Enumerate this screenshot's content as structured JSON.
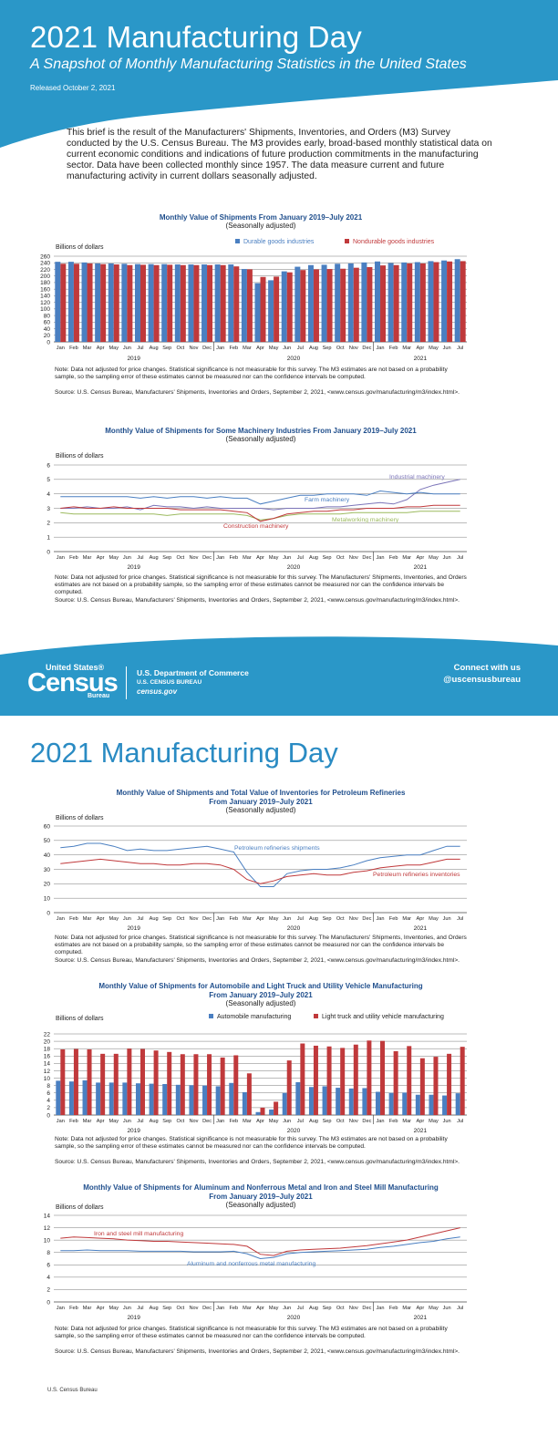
{
  "header": {
    "title": "2021 Manufacturing Day",
    "subtitle": "A Snapshot of Monthly Manufacturing Statistics in the United States",
    "released": "Released October 2, 2021",
    "bg_color": "#2a97c8"
  },
  "intro": "This brief is the result of the Manufacturers' Shipments, Inventories, and Orders (M3) Survey conducted by the U.S. Census Bureau. The M3 provides early, broad-based monthly statistical data on current economic conditions and indications of future production commitments in the manufacturing sector. Data have been collected monthly since 1957. The data measure current and future manufacturing activity in current dollars seasonally adjusted.",
  "month_labels": [
    "Jan",
    "Feb",
    "Mar",
    "Apr",
    "May",
    "Jun",
    "Jul",
    "Aug",
    "Sep",
    "Oct",
    "Nov",
    "Dec",
    "Jan",
    "Feb",
    "Mar",
    "Apr",
    "May",
    "Jun",
    "Jul",
    "Aug",
    "Sep",
    "Oct",
    "Nov",
    "Dec",
    "Jan",
    "Feb",
    "Mar",
    "Apr",
    "May",
    "Jun",
    "Jul"
  ],
  "years": [
    "2019",
    "2020",
    "2021"
  ],
  "banner": {
    "logo_top": "United States®",
    "logo_main": "Census",
    "logo_bottom": "Bureau",
    "dept": "U.S. Department of Commerce",
    "bureau": "U.S. CENSUS BUREAU",
    "site": "census.gov",
    "connect": "Connect with us",
    "handle": "@uscensusbureau"
  },
  "page2_title": "2021 Manufacturing Day",
  "footer_source": "U.S. Census Bureau",
  "colors": {
    "blue": "#4a7fc1",
    "red": "#c0393b",
    "green": "#9cba5f",
    "dark_blue": "#1f4e8c"
  },
  "chart1": {
    "title": "Monthly Value of Shipments From January 2019–July 2021",
    "subtitle": "(Seasonally adjusted)",
    "ylabel": "Billions of dollars",
    "note": "Note: Data not adjusted for price changes. Statistical significance is not measurable for this survey. The M3 estimates are not based on a probability sample, so the sampling error of these estimates cannot be measured nor can the confidence intervals be computed.",
    "source": "Source: U.S. Census Bureau, Manufacturers' Shipments, Inventories and Orders, September 2, 2021, <www.census.gov/manufacturing/m3/index.html>."
  },
  "chart2": {
    "title": "Monthly Value of Shipments for Some Machinery Industries From January 2019–July 2021",
    "subtitle": "(Seasonally adjusted)",
    "ylabel": "Billions of dollars",
    "note": "Note: Data not adjusted for price changes. Statistical significance is not measurable for this survey. The Manufacturers' Shipments, Inventories, and Orders estimates are not based on a probability sample, so the sampling error of these estimates cannot be measured nor can the confidence intervals be computed.",
    "source": "Source: U.S. Census Bureau, Manufacturers' Shipments, Inventories and Orders, September 2, 2021, <www.census.gov/manufacturing/m3/index.html>."
  },
  "chart3": {
    "title": "Monthly Value of Shipments and Total Value of Inventories for Petroleum Refineries",
    "title2": "From January 2019–July 2021",
    "subtitle": "(Seasonally adjusted)",
    "ylabel": "Billions of dollars",
    "note": "Note: Data not adjusted for price changes. Statistical significance is not measurable for this survey. The Manufacturers' Shipments, Inventories, and Orders estimates are not based on a probability sample, so the sampling error of these estimates cannot be measured nor can the confidence intervals be computed.",
    "source": "Source: U.S. Census Bureau, Manufacturers' Shipments, Inventories and Orders, September 2, 2021, <www.census.gov/manufacturing/m3/index.html>."
  },
  "chart4": {
    "title": "Monthly Value of Shipments for Automobile and Light Truck and Utility Vehicle Manufacturing",
    "title2": "From January 2019–July 2021",
    "subtitle": "(Seasonally adjusted)",
    "ylabel": "Billions of dollars",
    "note": "Note: Data not adjusted for price changes. Statistical significance is not measurable for this survey. The M3 estimates are not based on a probability sample, so the sampling error of these estimates cannot be measured nor can the confidence intervals be computed.",
    "source": "Source: U.S. Census Bureau, Manufacturers' Shipments, Inventories and Orders, September 2, 2021, <www.census.gov/manufacturing/m3/index.html>."
  },
  "chart5": {
    "title": "Monthly Value of Shipments for Aluminum and Nonferrous Metal and Iron and Steel Mill Manufacturing",
    "title2": "From January 2019–July 2021",
    "subtitle": "(Seasonally adjusted)",
    "ylabel": "Billions of dollars",
    "note": "Note: Data not adjusted for price changes. Statistical significance is not measurable for this survey. The M3 estimates are not based on a probability sample, so the sampling error of these estimates cannot be measured nor can the confidence intervals be computed.",
    "source": "Source: U.S. Census Bureau, Manufacturers' Shipments, Inventories and Orders, September 2, 2021, <www.census.gov/manufacturing/m3/index.html>."
  },
  "chart_data": [
    {
      "type": "bar",
      "title": "Monthly Value of Shipments From January 2019–July 2021",
      "ylabel": "Billions of dollars",
      "ylim": [
        0,
        260
      ],
      "yticks": [
        0,
        20,
        40,
        60,
        80,
        100,
        120,
        140,
        160,
        180,
        200,
        220,
        240,
        260
      ],
      "categories": [
        "Jan 2019",
        "Feb 2019",
        "Mar 2019",
        "Apr 2019",
        "May 2019",
        "Jun 2019",
        "Jul 2019",
        "Aug 2019",
        "Sep 2019",
        "Oct 2019",
        "Nov 2019",
        "Dec 2019",
        "Jan 2020",
        "Feb 2020",
        "Mar 2020",
        "Apr 2020",
        "May 2020",
        "Jun 2020",
        "Jul 2020",
        "Aug 2020",
        "Sep 2020",
        "Oct 2020",
        "Nov 2020",
        "Dec 2020",
        "Jan 2021",
        "Feb 2021",
        "Mar 2021",
        "Apr 2021",
        "May 2021",
        "Jun 2021",
        "Jul 2021"
      ],
      "legend_position": "top-right",
      "series": [
        {
          "name": "Durable goods industries",
          "color": "#4a7fc1",
          "values": [
            243,
            243,
            241,
            238,
            238,
            237,
            236,
            236,
            236,
            235,
            235,
            235,
            235,
            235,
            221,
            178,
            187,
            214,
            228,
            233,
            234,
            237,
            238,
            241,
            244,
            239,
            241,
            242,
            245,
            247,
            251
          ]
        },
        {
          "name": "Nondurable goods industries",
          "color": "#c0393b",
          "values": [
            237,
            237,
            238,
            236,
            235,
            233,
            234,
            233,
            234,
            233,
            233,
            233,
            233,
            229,
            220,
            197,
            198,
            211,
            218,
            220,
            221,
            222,
            225,
            227,
            232,
            233,
            238,
            238,
            242,
            244,
            245
          ]
        }
      ]
    },
    {
      "type": "line",
      "title": "Monthly Value of Shipments for Some Machinery Industries From January 2019–July 2021",
      "ylabel": "Billions of dollars",
      "ylim": [
        0,
        6
      ],
      "yticks": [
        0,
        1,
        2,
        3,
        4,
        5,
        6
      ],
      "series": [
        {
          "name": "Industrial machinery",
          "color": "#7b74b8",
          "values": [
            3.0,
            3.0,
            3.1,
            3.0,
            3.0,
            3.1,
            2.9,
            3.2,
            3.1,
            3.1,
            3.0,
            3.1,
            3.0,
            3.0,
            3.0,
            3.0,
            2.9,
            3.0,
            3.0,
            3.0,
            3.1,
            3.1,
            3.2,
            3.3,
            3.4,
            3.3,
            3.6,
            4.3,
            4.6,
            4.8,
            5.0
          ]
        },
        {
          "name": "Farm machinery",
          "color": "#4a7fc1",
          "values": [
            3.8,
            3.8,
            3.8,
            3.8,
            3.8,
            3.8,
            3.7,
            3.8,
            3.7,
            3.8,
            3.8,
            3.7,
            3.8,
            3.7,
            3.7,
            3.3,
            3.5,
            3.7,
            3.9,
            3.9,
            4.0,
            4.0,
            4.0,
            3.9,
            4.2,
            4.1,
            4.0,
            4.1,
            4.0,
            4.0,
            4.0
          ]
        },
        {
          "name": "Metalworking machinery",
          "color": "#9cba5f",
          "values": [
            2.7,
            2.6,
            2.6,
            2.6,
            2.6,
            2.6,
            2.6,
            2.6,
            2.5,
            2.6,
            2.6,
            2.6,
            2.6,
            2.6,
            2.5,
            2.2,
            2.3,
            2.5,
            2.6,
            2.6,
            2.6,
            2.6,
            2.7,
            2.7,
            2.7,
            2.7,
            2.7,
            2.8,
            2.8,
            2.8,
            2.8
          ]
        },
        {
          "name": "Construction machinery",
          "color": "#c0393b",
          "values": [
            3.0,
            3.1,
            3.0,
            3.0,
            3.1,
            3.0,
            3.0,
            3.0,
            3.0,
            2.9,
            2.9,
            2.9,
            2.9,
            2.8,
            2.7,
            2.1,
            2.3,
            2.6,
            2.7,
            2.8,
            2.8,
            2.9,
            2.9,
            3.0,
            3.0,
            3.0,
            3.1,
            3.1,
            3.2,
            3.2,
            3.2
          ]
        }
      ]
    },
    {
      "type": "line",
      "title": "Monthly Value of Shipments and Total Value of Inventories for Petroleum Refineries From January 2019–July 2021",
      "ylabel": "Billions of dollars",
      "ylim": [
        0,
        60
      ],
      "yticks": [
        0,
        10,
        20,
        30,
        40,
        50,
        60
      ],
      "series": [
        {
          "name": "Petroleum refineries shipments",
          "color": "#4a7fc1",
          "values": [
            45,
            46,
            48,
            48,
            46,
            43,
            44,
            43,
            43,
            44,
            45,
            46,
            44,
            42,
            28,
            18,
            18,
            27,
            29,
            30,
            30,
            31,
            33,
            36,
            38,
            39,
            40,
            40,
            43,
            46,
            46
          ]
        },
        {
          "name": "Petroleum refineries inventories",
          "color": "#c0393b",
          "values": [
            34,
            35,
            36,
            37,
            36,
            35,
            34,
            34,
            33,
            33,
            34,
            34,
            33,
            30,
            23,
            20,
            22,
            25,
            26,
            27,
            26,
            26,
            28,
            29,
            31,
            32,
            33,
            33,
            35,
            37,
            37
          ]
        }
      ]
    },
    {
      "type": "bar",
      "title": "Monthly Value of Shipments for Automobile and Light Truck and Utility Vehicle Manufacturing From January 2019–July 2021",
      "ylabel": "Billions of dollars",
      "ylim": [
        0,
        22
      ],
      "yticks": [
        0,
        2,
        4,
        6,
        8,
        10,
        12,
        14,
        16,
        18,
        20,
        22
      ],
      "legend_position": "top-right",
      "series": [
        {
          "name": "Automobile manufacturing",
          "color": "#4a7fc1",
          "values": [
            9.3,
            9.1,
            9.4,
            8.8,
            8.8,
            8.8,
            8.6,
            8.5,
            8.4,
            8.2,
            8.1,
            8.0,
            7.8,
            8.7,
            6.2,
            0.8,
            1.5,
            6.0,
            8.9,
            7.6,
            7.8,
            7.4,
            7.2,
            7.3,
            6.3,
            6.0,
            6.1,
            5.5,
            5.5,
            5.3,
            5.9
          ]
        },
        {
          "name": "Light truck and utility vehicle manufacturing",
          "color": "#c0393b",
          "values": [
            17.8,
            17.9,
            17.8,
            16.6,
            16.6,
            18.0,
            17.9,
            17.5,
            17.1,
            16.5,
            16.5,
            16.5,
            15.6,
            16.2,
            11.3,
            2.0,
            3.6,
            14.8,
            19.4,
            18.8,
            18.6,
            18.2,
            19.1,
            20.2,
            20.1,
            17.3,
            18.7,
            15.4,
            15.8,
            16.6,
            18.5
          ]
        }
      ]
    },
    {
      "type": "line",
      "title": "Monthly Value of Shipments for Aluminum and Nonferrous Metal and Iron and Steel Mill Manufacturing From January 2019–July 2021",
      "ylabel": "Billions of dollars",
      "ylim": [
        0,
        14
      ],
      "yticks": [
        0,
        2,
        4,
        6,
        8,
        10,
        12,
        14
      ],
      "series": [
        {
          "name": "Iron and steel mill manufacturing",
          "color": "#c0393b",
          "values": [
            10.3,
            10.5,
            10.4,
            10.3,
            10.2,
            10.0,
            9.9,
            9.8,
            9.8,
            9.7,
            9.6,
            9.5,
            9.4,
            9.3,
            9.0,
            7.7,
            7.5,
            8.2,
            8.4,
            8.5,
            8.6,
            8.7,
            8.9,
            9.1,
            9.4,
            9.7,
            10.0,
            10.5,
            11.0,
            11.5,
            12.0
          ]
        },
        {
          "name": "Aluminum and nonferrous metal manufacturing",
          "color": "#4a7fc1",
          "values": [
            8.3,
            8.3,
            8.4,
            8.3,
            8.3,
            8.3,
            8.2,
            8.2,
            8.2,
            8.2,
            8.1,
            8.1,
            8.1,
            8.2,
            7.8,
            7.0,
            7.2,
            7.8,
            8.0,
            8.1,
            8.2,
            8.3,
            8.4,
            8.5,
            8.8,
            9.0,
            9.3,
            9.6,
            9.8,
            10.2,
            10.5
          ]
        }
      ]
    }
  ]
}
